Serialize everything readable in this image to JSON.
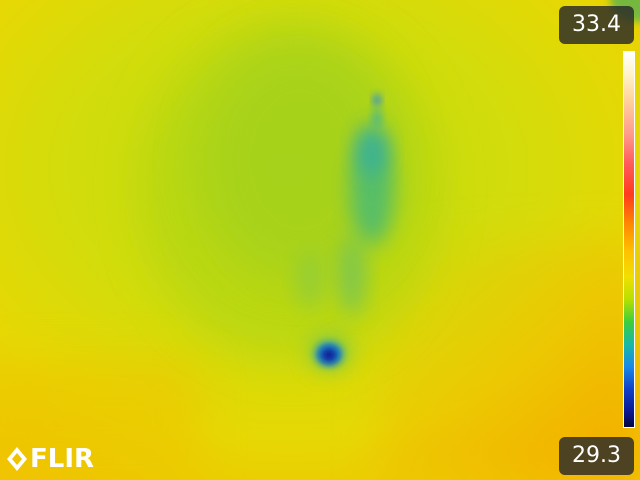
{
  "readout": {
    "max_temp": "33.4",
    "min_temp": "29.3"
  },
  "brand": {
    "logo_text": "FLIR",
    "logo_icon": "flir-diamond-icon"
  },
  "palette": {
    "background": "#e6d400",
    "cold_spot": "#0a1890",
    "trail": "#3ab8a8"
  }
}
